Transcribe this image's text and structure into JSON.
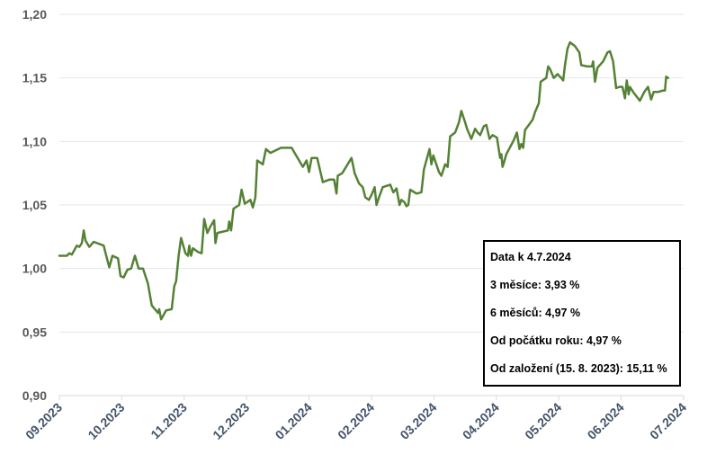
{
  "chart_data": {
    "type": "line",
    "title": "",
    "xlabel": "",
    "ylabel": "",
    "ylim": [
      0.9,
      1.2
    ],
    "yticks": [
      "0,90",
      "0,95",
      "1,00",
      "1,05",
      "1,10",
      "1,15",
      "1,20"
    ],
    "xlim": [
      0,
      10.15
    ],
    "xticks": [
      {
        "pos": 0,
        "label": "09.2023"
      },
      {
        "pos": 1,
        "label": "10.2023"
      },
      {
        "pos": 2,
        "label": "11.2023"
      },
      {
        "pos": 3,
        "label": "12.2023"
      },
      {
        "pos": 4,
        "label": "01.2024"
      },
      {
        "pos": 5,
        "label": "02.2024"
      },
      {
        "pos": 6,
        "label": "03.2024"
      },
      {
        "pos": 7,
        "label": "04.2024"
      },
      {
        "pos": 8,
        "label": "05.2024"
      },
      {
        "pos": 9,
        "label": "06.2024"
      },
      {
        "pos": 10,
        "label": "07.2024"
      }
    ],
    "grid": true,
    "colors": {
      "series": "#548235",
      "grid": "#e6e6e6"
    },
    "series": [
      {
        "name": "",
        "points": [
          [
            0.0,
            1.01
          ],
          [
            0.12,
            1.01
          ],
          [
            0.16,
            1.012
          ],
          [
            0.2,
            1.011
          ],
          [
            0.28,
            1.018
          ],
          [
            0.32,
            1.017
          ],
          [
            0.36,
            1.02
          ],
          [
            0.39,
            1.03
          ],
          [
            0.42,
            1.022
          ],
          [
            0.48,
            1.017
          ],
          [
            0.55,
            1.021
          ],
          [
            0.71,
            1.018
          ],
          [
            0.75,
            1.01
          ],
          [
            0.8,
            1.001
          ],
          [
            0.85,
            1.01
          ],
          [
            0.94,
            1.008
          ],
          [
            0.98,
            0.994
          ],
          [
            1.03,
            0.993
          ],
          [
            1.09,
            0.999
          ],
          [
            1.15,
            1.0
          ],
          [
            1.21,
            1.01
          ],
          [
            1.27,
            1.0
          ],
          [
            1.34,
            1.0
          ],
          [
            1.42,
            0.988
          ],
          [
            1.48,
            0.971
          ],
          [
            1.53,
            0.968
          ],
          [
            1.58,
            0.965
          ],
          [
            1.6,
            0.968
          ],
          [
            1.63,
            0.96
          ],
          [
            1.71,
            0.967
          ],
          [
            1.8,
            0.968
          ],
          [
            1.84,
            0.986
          ],
          [
            1.87,
            0.99
          ],
          [
            1.91,
            1.01
          ],
          [
            1.95,
            1.024
          ],
          [
            2.02,
            1.012
          ],
          [
            2.06,
            1.01
          ],
          [
            2.08,
            1.018
          ],
          [
            2.11,
            1.01
          ],
          [
            2.14,
            1.016
          ],
          [
            2.22,
            1.013
          ],
          [
            2.28,
            1.012
          ],
          [
            2.32,
            1.039
          ],
          [
            2.37,
            1.028
          ],
          [
            2.42,
            1.033
          ],
          [
            2.48,
            1.038
          ],
          [
            2.5,
            1.02
          ],
          [
            2.53,
            1.028
          ],
          [
            2.7,
            1.03
          ],
          [
            2.72,
            1.037
          ],
          [
            2.75,
            1.03
          ],
          [
            2.79,
            1.047
          ],
          [
            2.88,
            1.05
          ],
          [
            2.92,
            1.062
          ],
          [
            2.97,
            1.051
          ],
          [
            3.06,
            1.054
          ],
          [
            3.1,
            1.048
          ],
          [
            3.14,
            1.056
          ],
          [
            3.17,
            1.085
          ],
          [
            3.26,
            1.082
          ],
          [
            3.31,
            1.094
          ],
          [
            3.38,
            1.091
          ],
          [
            3.55,
            1.095
          ],
          [
            3.72,
            1.095
          ],
          [
            3.9,
            1.08
          ],
          [
            3.96,
            1.085
          ],
          [
            4.0,
            1.076
          ],
          [
            4.04,
            1.087
          ],
          [
            4.13,
            1.087
          ],
          [
            4.22,
            1.068
          ],
          [
            4.33,
            1.07
          ],
          [
            4.4,
            1.07
          ],
          [
            4.44,
            1.059
          ],
          [
            4.46,
            1.073
          ],
          [
            4.53,
            1.075
          ],
          [
            4.68,
            1.087
          ],
          [
            4.73,
            1.075
          ],
          [
            4.8,
            1.067
          ],
          [
            4.86,
            1.064
          ],
          [
            4.9,
            1.056
          ],
          [
            4.96,
            1.054
          ],
          [
            5.01,
            1.059
          ],
          [
            5.05,
            1.064
          ],
          [
            5.08,
            1.05
          ],
          [
            5.12,
            1.056
          ],
          [
            5.18,
            1.064
          ],
          [
            5.3,
            1.066
          ],
          [
            5.35,
            1.06
          ],
          [
            5.4,
            1.063
          ],
          [
            5.45,
            1.05
          ],
          [
            5.48,
            1.054
          ],
          [
            5.53,
            1.052
          ],
          [
            5.56,
            1.049
          ],
          [
            5.59,
            1.05
          ],
          [
            5.62,
            1.062
          ],
          [
            5.72,
            1.059
          ],
          [
            5.8,
            1.06
          ],
          [
            5.84,
            1.078
          ],
          [
            5.93,
            1.094
          ],
          [
            5.96,
            1.082
          ],
          [
            5.99,
            1.089
          ],
          [
            6.08,
            1.076
          ],
          [
            6.12,
            1.073
          ],
          [
            6.18,
            1.082
          ],
          [
            6.22,
            1.08
          ],
          [
            6.26,
            1.104
          ],
          [
            6.34,
            1.107
          ],
          [
            6.4,
            1.115
          ],
          [
            6.44,
            1.124
          ],
          [
            6.5,
            1.115
          ],
          [
            6.53,
            1.11
          ],
          [
            6.6,
            1.102
          ],
          [
            6.66,
            1.11
          ],
          [
            6.7,
            1.107
          ],
          [
            6.74,
            1.105
          ],
          [
            6.8,
            1.112
          ],
          [
            6.84,
            1.113
          ],
          [
            6.89,
            1.102
          ],
          [
            6.94,
            1.105
          ],
          [
            7.01,
            1.103
          ],
          [
            7.06,
            1.087
          ],
          [
            7.08,
            1.09
          ],
          [
            7.1,
            1.08
          ],
          [
            7.12,
            1.083
          ],
          [
            7.16,
            1.09
          ],
          [
            7.28,
            1.101
          ],
          [
            7.33,
            1.107
          ],
          [
            7.37,
            1.094
          ],
          [
            7.4,
            1.098
          ],
          [
            7.43,
            1.095
          ],
          [
            7.46,
            1.109
          ],
          [
            7.52,
            1.113
          ],
          [
            7.58,
            1.117
          ],
          [
            7.62,
            1.123
          ],
          [
            7.68,
            1.13
          ],
          [
            7.71,
            1.147
          ],
          [
            7.8,
            1.15
          ],
          [
            7.83,
            1.159
          ],
          [
            7.86,
            1.157
          ],
          [
            7.92,
            1.15
          ],
          [
            7.98,
            1.153
          ],
          [
            8.04,
            1.15
          ],
          [
            8.07,
            1.148
          ],
          [
            8.1,
            1.16
          ],
          [
            8.14,
            1.173
          ],
          [
            8.18,
            1.178
          ],
          [
            8.26,
            1.175
          ],
          [
            8.33,
            1.17
          ],
          [
            8.36,
            1.16
          ],
          [
            8.46,
            1.159
          ],
          [
            8.53,
            1.159
          ],
          [
            8.55,
            1.163
          ],
          [
            8.58,
            1.147
          ],
          [
            8.62,
            1.158
          ],
          [
            8.71,
            1.163
          ],
          [
            8.78,
            1.17
          ],
          [
            8.82,
            1.171
          ],
          [
            8.87,
            1.163
          ],
          [
            8.92,
            1.142
          ],
          [
            8.97,
            1.143
          ],
          [
            9.02,
            1.143
          ],
          [
            9.06,
            1.134
          ],
          [
            9.09,
            1.148
          ],
          [
            9.12,
            1.137
          ],
          [
            9.14,
            1.143
          ],
          [
            9.19,
            1.139
          ],
          [
            9.3,
            1.132
          ],
          [
            9.37,
            1.139
          ],
          [
            9.43,
            1.143
          ],
          [
            9.48,
            1.133
          ],
          [
            9.52,
            1.139
          ],
          [
            9.6,
            1.139
          ],
          [
            9.66,
            1.14
          ],
          [
            9.7,
            1.14
          ],
          [
            9.72,
            1.151
          ],
          [
            9.75,
            1.15
          ]
        ]
      }
    ]
  },
  "info_box": {
    "date_line": "Data k 4.7.2024",
    "three_months": "3 měsíce: 3,93 %",
    "six_months": "6 měsíců: 4,97 %",
    "ytd": "Od počátku roku: 4,97 %",
    "since_inception": "Od založení (15. 8. 2023): 15,11 %"
  }
}
